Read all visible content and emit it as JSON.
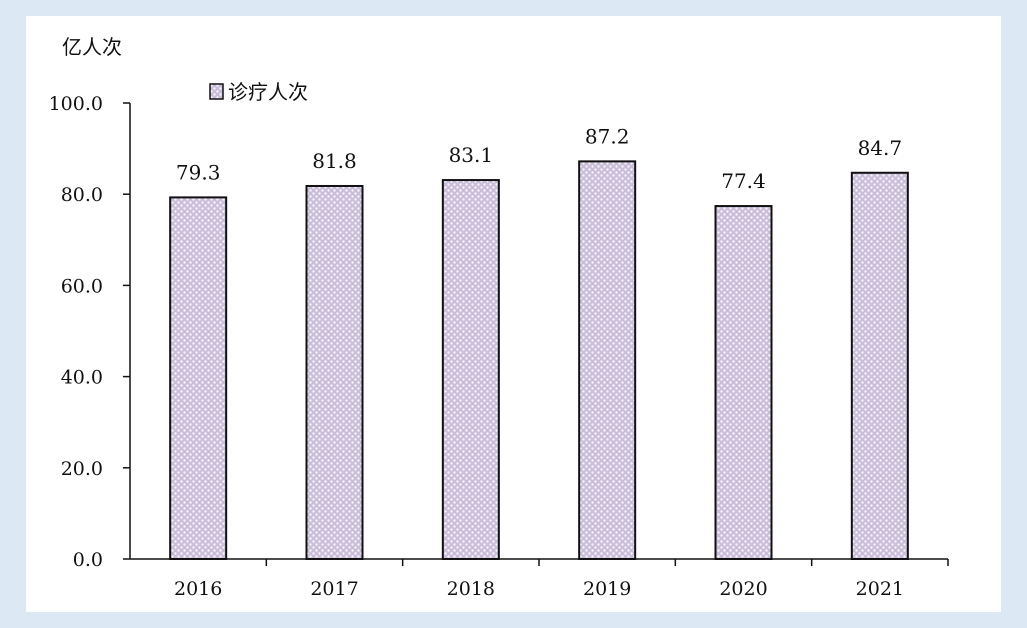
{
  "chart_data": {
    "type": "bar",
    "unit_label": "亿人次",
    "categories": [
      "2016",
      "2017",
      "2018",
      "2019",
      "2020",
      "2021"
    ],
    "series": [
      {
        "name": "诊疗人次",
        "values": [
          79.3,
          81.8,
          83.1,
          87.2,
          77.4,
          84.7
        ]
      }
    ],
    "data_labels": [
      "79.3",
      "81.8",
      "83.1",
      "87.2",
      "77.4",
      "84.7"
    ],
    "ylim": [
      0,
      100
    ],
    "yticks": [
      "0.0",
      "20.0",
      "40.0",
      "60.0",
      "80.0",
      "100.0"
    ],
    "legend_position": "top-left",
    "grid": false,
    "colors": {
      "bar_fill": "#c9bdd9",
      "bar_pattern": "#ffffff",
      "bar_stroke": "#111111",
      "background": "#dce8f3"
    }
  }
}
